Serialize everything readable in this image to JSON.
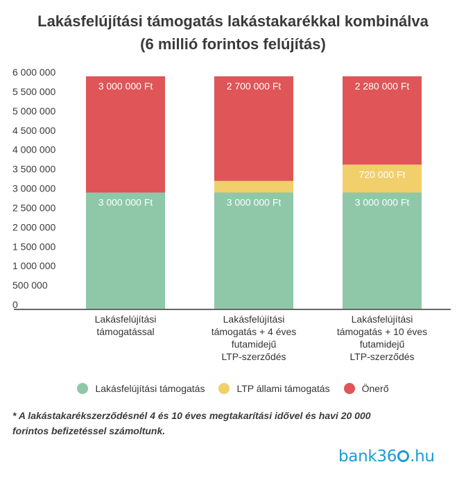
{
  "title_line1": "Lakásfelújítási támogatás lakástakarékkal kombinálva",
  "title_line2": "(6 millió forintos felújítás)",
  "chart_data": {
    "type": "bar",
    "stacked": true,
    "title": "Lakásfelújítási támogatás lakástakarékkal kombinálva (6 millió forintos felújítás)",
    "categories": [
      [
        "Lakásfelújítási",
        "támogatással"
      ],
      [
        "Lakásfelújítási",
        "támogatás + 4 éves",
        "futamidejű",
        "LTP-szerződés"
      ],
      [
        "Lakásfelújítási",
        "támogatás + 10 éves",
        "futamidejű",
        "LTP-szerződés"
      ]
    ],
    "series": [
      {
        "name": "Lakásfelújítási támogatás",
        "color": "#8fc7a9",
        "values": [
          3000000,
          3000000,
          3000000
        ],
        "labels": [
          "3 000 000 Ft",
          "3 000 000 Ft",
          "3 000 000 Ft"
        ]
      },
      {
        "name": "LTP állami támogatás",
        "color": "#f1cf6b",
        "values": [
          0,
          300000,
          720000
        ],
        "labels": [
          "",
          "",
          "720 000 Ft"
        ]
      },
      {
        "name": "Önerő",
        "color": "#df5558",
        "values": [
          3000000,
          2700000,
          2280000
        ],
        "labels": [
          "3 000 000 Ft",
          "2 700 000 Ft",
          "2 280 000 Ft"
        ]
      }
    ],
    "ylim": [
      0,
      6000000
    ],
    "yticks": [
      0,
      500000,
      1000000,
      1500000,
      2000000,
      2500000,
      3000000,
      3500000,
      4000000,
      4500000,
      5000000,
      5500000,
      6000000
    ],
    "ytick_labels": [
      "0",
      "500 000",
      "1 000 000",
      "1 500 000",
      "2 000 000",
      "2 500 000",
      "3 000 000",
      "3 500 000",
      "4 000 000",
      "4 500 000",
      "5 000 000",
      "5 500 000",
      "6 000 000"
    ],
    "grid": false,
    "legend_position": "bottom"
  },
  "footnote": "* A lakástakarékszerződésnél 4 és 10 éves megtakarítási idővel és havi 20 000 forintos befizetéssel számoltunk.",
  "logo": {
    "prefix": "bank36",
    "suffix": ".hu"
  }
}
